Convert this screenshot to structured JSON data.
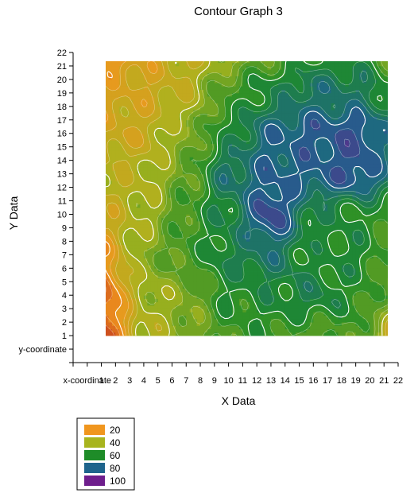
{
  "chart_data": {
    "type": "heatmap",
    "subtype": "filled-contour",
    "title": "Contour Graph 3",
    "xlabel": "X Data",
    "ylabel": "Y Data",
    "xlim": [
      -1,
      22
    ],
    "ylim": [
      -1,
      22
    ],
    "x_ticks": [
      1,
      2,
      3,
      4,
      5,
      6,
      7,
      8,
      9,
      10,
      11,
      12,
      13,
      14,
      15,
      16,
      17,
      18,
      19,
      20,
      21,
      22
    ],
    "y_ticks": [
      1,
      2,
      3,
      4,
      5,
      6,
      7,
      8,
      9,
      10,
      11,
      12,
      13,
      14,
      15,
      16,
      17,
      18,
      19,
      20,
      21,
      22
    ],
    "x_extra_label": "x-coordinate",
    "y_extra_label": "y-coordinate",
    "contour_levels": [
      20,
      40,
      60,
      80,
      100
    ],
    "legend": [
      {
        "label": "20",
        "color": "#f0961e"
      },
      {
        "label": "40",
        "color": "#a8b41e"
      },
      {
        "label": "60",
        "color": "#1e8c28"
      },
      {
        "label": "80",
        "color": "#1e648c"
      },
      {
        "label": "100",
        "color": "#6e1e8c"
      }
    ],
    "legend_position": "bottom-left",
    "grid": false,
    "z_grid_step": 3,
    "z_grid_x": [
      1,
      4,
      7,
      10,
      13,
      16,
      19,
      22
    ],
    "z_grid_y": [
      1,
      4,
      7,
      10,
      13,
      16,
      19,
      22
    ],
    "z_values": [
      [
        8,
        38,
        45,
        55,
        58,
        52,
        55,
        30
      ],
      [
        10,
        40,
        46,
        60,
        62,
        66,
        58,
        48
      ],
      [
        22,
        45,
        55,
        65,
        72,
        60,
        62,
        50
      ],
      [
        32,
        40,
        55,
        65,
        88,
        65,
        60,
        56
      ],
      [
        36,
        38,
        50,
        72,
        80,
        80,
        85,
        70
      ],
      [
        30,
        32,
        46,
        62,
        78,
        82,
        85,
        72
      ],
      [
        28,
        30,
        36,
        55,
        64,
        72,
        70,
        60
      ],
      [
        18,
        28,
        35,
        42,
        52,
        60,
        62,
        48
      ]
    ]
  }
}
